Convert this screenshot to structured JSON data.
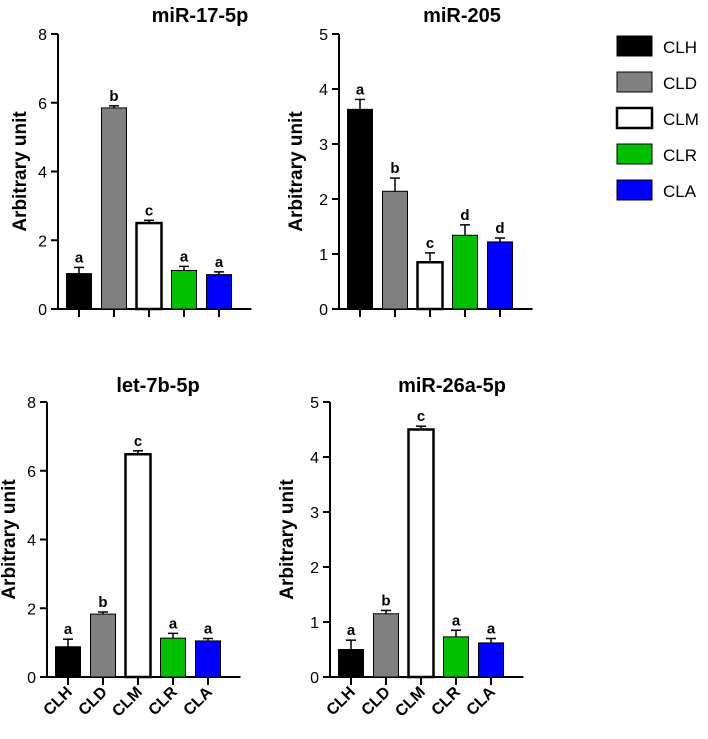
{
  "chart_data": [
    {
      "type": "bar",
      "title": "miR-17-5p",
      "ylabel": "Arbitrary unit",
      "ylim": [
        0,
        8
      ],
      "yticks": [
        0,
        2,
        4,
        6,
        8
      ],
      "categories": [
        "CLH",
        "CLD",
        "CLM",
        "CLR",
        "CLA"
      ],
      "values": [
        1.03,
        5.85,
        2.5,
        1.12,
        1.0
      ],
      "errors": [
        0.18,
        0.06,
        0.08,
        0.12,
        0.08
      ],
      "letters": [
        "a",
        "b",
        "c",
        "a",
        "a"
      ],
      "show_category_labels": false
    },
    {
      "type": "bar",
      "title": "miR-205",
      "ylabel": "Arbitrary unit",
      "ylim": [
        0,
        5
      ],
      "yticks": [
        0,
        1,
        2,
        3,
        4,
        5
      ],
      "categories": [
        "CLH",
        "CLD",
        "CLM",
        "CLR",
        "CLA"
      ],
      "values": [
        3.63,
        2.14,
        0.85,
        1.34,
        1.22
      ],
      "errors": [
        0.18,
        0.24,
        0.17,
        0.19,
        0.07
      ],
      "letters": [
        "a",
        "b",
        "c",
        "d",
        "d"
      ],
      "show_category_labels": false
    },
    {
      "type": "bar",
      "title": "let-7b-5p",
      "ylabel": "Arbitrary unit",
      "ylim": [
        0,
        8
      ],
      "yticks": [
        0,
        2,
        4,
        6,
        8
      ],
      "categories": [
        "CLH",
        "CLD",
        "CLM",
        "CLR",
        "CLA"
      ],
      "values": [
        0.88,
        1.83,
        6.48,
        1.13,
        1.05
      ],
      "errors": [
        0.22,
        0.06,
        0.1,
        0.14,
        0.07
      ],
      "letters": [
        "a",
        "b",
        "c",
        "a",
        "a"
      ],
      "show_category_labels": true
    },
    {
      "type": "bar",
      "title": "miR-26a-5p",
      "ylabel": "Arbitrary unit",
      "ylim": [
        0,
        5
      ],
      "yticks": [
        0,
        1,
        2,
        3,
        4,
        5
      ],
      "categories": [
        "CLH",
        "CLD",
        "CLM",
        "CLR",
        "CLA"
      ],
      "values": [
        0.5,
        1.15,
        4.5,
        0.73,
        0.62
      ],
      "errors": [
        0.17,
        0.06,
        0.06,
        0.12,
        0.08
      ],
      "letters": [
        "a",
        "b",
        "c",
        "a",
        "a"
      ],
      "show_category_labels": true
    }
  ],
  "legend": {
    "placement": "top-right",
    "items": [
      {
        "label": "CLH",
        "fill": "#000000"
      },
      {
        "label": "CLD",
        "fill": "#808080"
      },
      {
        "label": "CLM",
        "fill": "#ffffff"
      },
      {
        "label": "CLR",
        "fill": "#00c000"
      },
      {
        "label": "CLA",
        "fill": "#0000ff"
      }
    ]
  },
  "bar_colors": [
    "#000000",
    "#808080",
    "#ffffff",
    "#00c000",
    "#0000ff"
  ]
}
